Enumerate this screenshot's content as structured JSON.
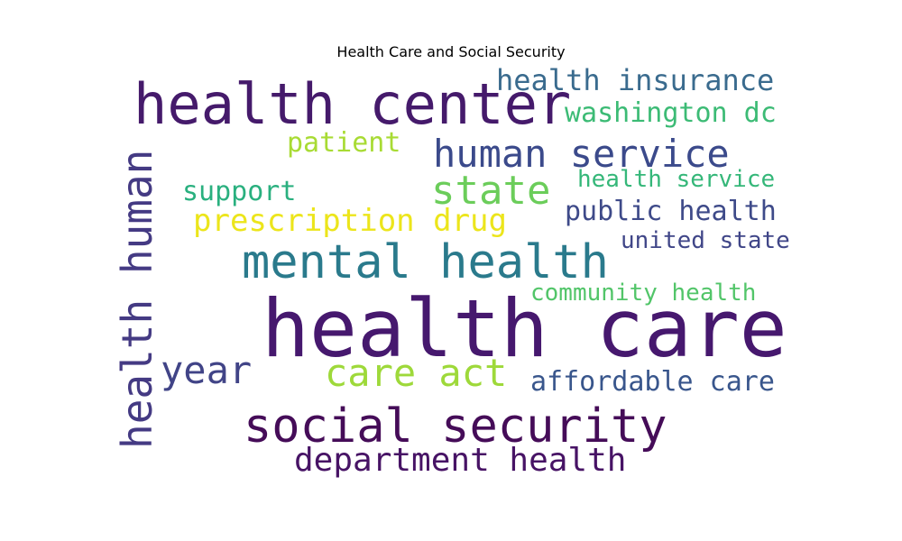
{
  "chart_data": {
    "type": "wordcloud",
    "title": "Health Care and Social Security",
    "words": [
      {
        "text": "health care",
        "color": "#46186e"
      },
      {
        "text": "health center",
        "color": "#451a6b"
      },
      {
        "text": "social security",
        "color": "#450c58"
      },
      {
        "text": "mental health",
        "color": "#2a7a8c"
      },
      {
        "text": "health human",
        "color": "#443a83"
      },
      {
        "text": "human service",
        "color": "#3b4a8b"
      },
      {
        "text": "state",
        "color": "#6bcd5a"
      },
      {
        "text": "care act",
        "color": "#9ed93a"
      },
      {
        "text": "year",
        "color": "#414487"
      },
      {
        "text": "department health",
        "color": "#471365"
      },
      {
        "text": "prescription drug",
        "color": "#ece51b"
      },
      {
        "text": "health insurance",
        "color": "#3a6b8e"
      },
      {
        "text": "washington dc",
        "color": "#3cbb75"
      },
      {
        "text": "public health",
        "color": "#3e4a89"
      },
      {
        "text": "affordable care",
        "color": "#39568c"
      },
      {
        "text": "patient",
        "color": "#a8db34"
      },
      {
        "text": "support",
        "color": "#2ab07f"
      },
      {
        "text": "health service",
        "color": "#35b779"
      },
      {
        "text": "community health",
        "color": "#52c569"
      },
      {
        "text": "united state",
        "color": "#404688"
      }
    ]
  }
}
